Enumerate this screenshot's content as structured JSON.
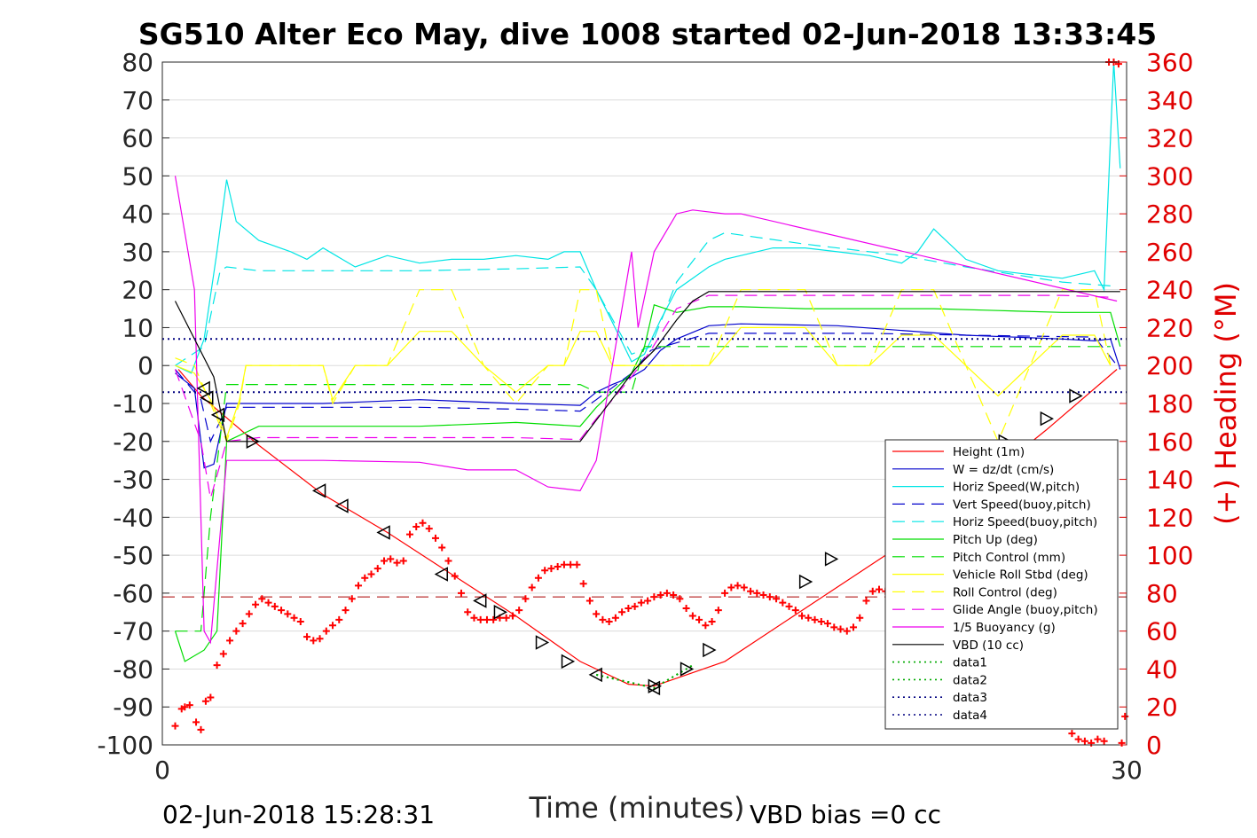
{
  "chart_data": {
    "type": "line",
    "title": "SG510 Alter Eco May, dive 1008 started 02-Jun-2018 13:33:45",
    "xlabel": "Time (minutes)",
    "ylabel_right": "(+) Heading (°M)",
    "footer_left": "02-Jun-2018 15:28:31",
    "footer_right": "VBD bias =0 cc",
    "xlim": [
      0,
      30
    ],
    "ylim_left": [
      -100,
      80
    ],
    "ylim_right": [
      0,
      360
    ],
    "xticks": [
      "0",
      "30"
    ],
    "yticks_left": [
      "80",
      "70",
      "60",
      "50",
      "40",
      "30",
      "20",
      "10",
      "0",
      "-10",
      "-20",
      "-30",
      "-40",
      "-50",
      "-60",
      "-70",
      "-80",
      "-90",
      "-100"
    ],
    "yticks_right": [
      "360",
      "340",
      "320",
      "300",
      "280",
      "260",
      "240",
      "220",
      "200",
      "180",
      "160",
      "140",
      "120",
      "100",
      "80",
      "60",
      "40",
      "20",
      "0"
    ],
    "grid": true,
    "legend_position": "lower-right",
    "colors": {
      "red": "#ff0000",
      "blue": "#0000cc",
      "cyan": "#00e5e5",
      "green": "#00dd00",
      "yellow": "#ffff00",
      "magenta": "#ee00ee",
      "black": "#000000",
      "darkred": "#aa0000"
    },
    "series": [
      {
        "name": "Height (1m)",
        "color": "#ff0000",
        "style": "solid",
        "x": [
          0.5,
          1.2,
          3,
          5,
          7,
          9,
          11,
          13,
          14.5,
          15.3,
          17.5,
          20,
          22.5,
          25,
          27.5,
          29.7
        ],
        "y": [
          -1,
          -8,
          -21,
          -34,
          -44,
          -55,
          -66,
          -78,
          -84,
          -84.5,
          -78,
          -64,
          -50,
          -34,
          -17,
          -1
        ]
      },
      {
        "name": "W = dz/dt (cm/s)",
        "color": "#0000cc",
        "style": "solid",
        "x": [
          0.4,
          1,
          1.3,
          1.6,
          2,
          3,
          5,
          8,
          11,
          13,
          13.5,
          14,
          14.6,
          15,
          15.5,
          16,
          17,
          18,
          21,
          25,
          28,
          29,
          29.5,
          29.8
        ],
        "y": [
          -2,
          -6,
          -27,
          -26,
          -10,
          -10,
          -10,
          -9,
          -10,
          -10.5,
          -7,
          -5,
          -3,
          -1,
          4,
          7,
          10.5,
          11,
          10.5,
          8,
          7,
          6.5,
          7,
          -1
        ]
      },
      {
        "name": "Horiz Speed(W,pitch)",
        "color": "#00e5e5",
        "style": "solid",
        "x": [
          0.4,
          0.9,
          1.3,
          1.7,
          2,
          2.3,
          3,
          4,
          4.5,
          5,
          6,
          7,
          8,
          9,
          10,
          11,
          12,
          12.5,
          13,
          13.5,
          14.2,
          14.6,
          15,
          15.5,
          16,
          17,
          17.5,
          18,
          19,
          20,
          21,
          22,
          23,
          23.5,
          24,
          25,
          26,
          27,
          28,
          29,
          29.3,
          29.6,
          29.8
        ],
        "y": [
          0,
          -2,
          7,
          30,
          49,
          38,
          33,
          30,
          28,
          31,
          26,
          29,
          27,
          28,
          28,
          29,
          28,
          30,
          30,
          20,
          8,
          1,
          3,
          12,
          20,
          26,
          28,
          29,
          31,
          31,
          30,
          29,
          27,
          30,
          36,
          28,
          25,
          24,
          23,
          25,
          20,
          80,
          52
        ]
      },
      {
        "name": "Vert Speed(buoy,pitch)",
        "color": "#0000cc",
        "style": "dashed",
        "x": [
          0.4,
          1.2,
          1.5,
          2,
          3,
          5,
          8,
          11,
          13,
          13.5,
          14.6,
          15.2,
          16,
          17,
          18,
          22,
          25,
          29,
          29.8
        ],
        "y": [
          -1,
          -9,
          -20,
          -11,
          -11,
          -11,
          -11,
          -11.5,
          -12,
          -9,
          -2,
          4,
          6,
          8.5,
          8.5,
          8.5,
          8,
          7.5,
          -1
        ]
      },
      {
        "name": "Horiz Speed(buoy,pitch)",
        "color": "#00e5e5",
        "style": "dashed",
        "x": [
          0.4,
          1.3,
          1.8,
          2,
          3,
          5,
          8,
          11,
          13,
          13.5,
          14.6,
          15.2,
          16,
          17,
          17.5,
          20,
          23,
          25,
          28,
          29.5
        ],
        "y": [
          0,
          5,
          25,
          26,
          25,
          25,
          25,
          25.5,
          26,
          20,
          3,
          5,
          22,
          33,
          35,
          32,
          29,
          26,
          22,
          21
        ]
      },
      {
        "name": "Pitch Up (deg)",
        "color": "#00dd00",
        "style": "solid",
        "x": [
          0.4,
          0.7,
          1.3,
          1.7,
          2,
          3,
          5,
          8,
          11,
          13,
          13.5,
          14.6,
          15,
          15.3,
          16,
          17,
          18,
          20,
          22,
          24,
          26,
          28,
          29,
          29.5,
          29.8
        ],
        "y": [
          -70,
          -78,
          -75,
          -70,
          -20,
          -16,
          -16,
          -16,
          -15,
          -16,
          -11,
          -2,
          5,
          16,
          14,
          15.5,
          15.5,
          15,
          15,
          15,
          14.5,
          14,
          14,
          14,
          5
        ]
      },
      {
        "name": "Pitch Control (mm)",
        "color": "#00dd00",
        "style": "dashed",
        "x": [
          0.4,
          1.2,
          1.5,
          2,
          3,
          13,
          13.5,
          14.6,
          15,
          15.3,
          16,
          29.5
        ],
        "y": [
          -70,
          -70,
          -40,
          -5,
          -5,
          -5,
          -7,
          -7,
          5,
          5,
          5,
          5
        ]
      },
      {
        "name": "Vehicle Roll Stbd (deg)",
        "color": "#ffff00",
        "style": "solid",
        "x": [
          0.4,
          1,
          1.5,
          2,
          2.4,
          2.6,
          3,
          5,
          5.3,
          6,
          6.5,
          7,
          8,
          9,
          10,
          11,
          12,
          12.5,
          13,
          13.5,
          14,
          15,
          16,
          17,
          18,
          20,
          21,
          22,
          23,
          24,
          25,
          26,
          27,
          28,
          29,
          29.5
        ],
        "y": [
          0,
          -2,
          -9,
          -19,
          -9,
          0,
          0,
          0,
          -9,
          0,
          0,
          0,
          9,
          9,
          0,
          -7,
          0,
          0,
          9,
          9,
          0,
          0,
          0,
          0,
          10,
          10,
          0,
          0,
          8,
          8,
          0,
          -8,
          0,
          8,
          8,
          0
        ]
      },
      {
        "name": "Roll Control (deg)",
        "color": "#ffff00",
        "style": "dashed",
        "x": [
          0.4,
          1,
          1.5,
          2,
          2.4,
          2.6,
          3,
          5,
          5.3,
          6,
          6.5,
          7,
          8,
          9,
          10,
          11,
          12,
          12.5,
          13,
          13.5,
          14,
          15,
          16,
          17,
          18,
          20,
          21,
          22,
          23,
          24,
          25,
          26,
          27,
          28,
          29,
          29.5
        ],
        "y": [
          2,
          0,
          -10,
          -20,
          -10,
          0,
          0,
          0,
          -10,
          0,
          0,
          0,
          20,
          20,
          0,
          -10,
          0,
          0,
          20,
          20,
          0,
          0,
          0,
          0,
          20,
          20,
          0,
          0,
          20,
          20,
          0,
          -20,
          0,
          20,
          20,
          0
        ]
      },
      {
        "name": "Glide Angle (buoy,pitch)",
        "color": "#ee00ee",
        "style": "dashed",
        "x": [
          0.4,
          1.2,
          1.5,
          2,
          3,
          5,
          8,
          11,
          13,
          13.5,
          14.6,
          15.2,
          16,
          17,
          20,
          24,
          28,
          29.5
        ],
        "y": [
          -1,
          -20,
          -35,
          -20,
          -19,
          -19,
          -19,
          -19,
          -19.5,
          -14,
          -3,
          4,
          15,
          18.5,
          18.5,
          18.5,
          18.5,
          18
        ]
      },
      {
        "name": "1/5 Buoyancy (g)",
        "color": "#ee00ee",
        "style": "solid",
        "x": [
          0.4,
          1,
          1.3,
          1.5,
          2,
          3,
          5,
          8,
          9.5,
          11,
          12,
          13,
          13.5,
          14.6,
          14.8,
          15.3,
          16,
          16.5,
          17.5,
          18,
          29.7
        ],
        "y": [
          50,
          20,
          -70,
          -73,
          -25,
          -25,
          -25,
          -25.5,
          -27.5,
          -27.5,
          -32,
          -33,
          -25,
          30,
          10,
          30,
          40,
          41,
          40,
          40,
          17
        ]
      },
      {
        "name": "VBD (10 cc)",
        "color": "#000000",
        "style": "solid",
        "x": [
          0.4,
          1.6,
          2,
          3,
          5,
          8,
          11,
          13,
          14.7,
          15.3,
          16,
          16.5,
          17,
          20,
          25,
          29.8
        ],
        "y": [
          17,
          -3,
          -20,
          -20,
          -20,
          -20,
          -20,
          -20,
          -1,
          4,
          12,
          17,
          19.5,
          19.5,
          19.5,
          19.5
        ]
      },
      {
        "name": "data1",
        "color": "#00aa00",
        "style": "dotted",
        "x": [
          13.5,
          15.3,
          16.5
        ],
        "y": [
          -81.5,
          -85,
          -79
        ]
      },
      {
        "name": "data2",
        "color": "#00aa00",
        "style": "dotted",
        "x": [
          13.5,
          15.3,
          16.5
        ],
        "y": [
          -81.5,
          -85,
          -79
        ]
      },
      {
        "name": "data3",
        "color": "#000080",
        "style": "dotted",
        "x": [
          0,
          30
        ],
        "y": [
          7,
          7
        ]
      },
      {
        "name": "data4",
        "color": "#000080",
        "style": "dotted",
        "x": [
          0,
          30
        ],
        "y": [
          -7,
          -7
        ]
      }
    ],
    "heading_reference": {
      "color": "#aa0000",
      "style": "dashed",
      "heading_deg": 78
    },
    "heading_points": {
      "color": "#ff0000",
      "marker": "+",
      "x": [
        0.4,
        0.6,
        0.7,
        0.85,
        1.05,
        1.2,
        1.35,
        1.5,
        1.7,
        1.9,
        2.1,
        2.3,
        2.5,
        2.7,
        2.9,
        3.1,
        3.3,
        3.5,
        3.7,
        3.9,
        4.1,
        4.3,
        4.5,
        4.7,
        4.9,
        5.1,
        5.3,
        5.5,
        5.7,
        5.9,
        6.1,
        6.3,
        6.5,
        6.7,
        6.9,
        7.1,
        7.3,
        7.5,
        7.7,
        7.9,
        8.1,
        8.3,
        8.5,
        8.7,
        8.9,
        9.1,
        9.3,
        9.5,
        9.7,
        9.9,
        10.1,
        10.3,
        10.5,
        10.7,
        10.9,
        11.1,
        11.3,
        11.5,
        11.7,
        11.9,
        12.1,
        12.3,
        12.5,
        12.7,
        12.9,
        13.1,
        13.3,
        13.5,
        13.7,
        13.9,
        14.1,
        14.3,
        14.5,
        14.7,
        14.9,
        15.1,
        15.3,
        15.5,
        15.7,
        15.9,
        16.1,
        16.3,
        16.5,
        16.7,
        16.9,
        17.1,
        17.3,
        17.5,
        17.7,
        17.9,
        18.1,
        18.3,
        18.5,
        18.7,
        18.9,
        19.1,
        19.3,
        19.5,
        19.7,
        19.9,
        20.1,
        20.3,
        20.5,
        20.7,
        20.9,
        21.1,
        21.3,
        21.5,
        21.7,
        21.9,
        22.1,
        22.3,
        22.5,
        22.7,
        22.9,
        28.3,
        28.5,
        28.7,
        28.9,
        29.1,
        29.3,
        29.45,
        29.6,
        29.75,
        29.85,
        29.95
      ],
      "y": [
        10,
        19,
        20,
        21,
        12,
        8,
        23,
        25,
        42,
        48,
        55,
        60,
        64,
        69,
        74,
        77,
        75,
        73,
        71,
        69,
        67,
        65,
        57,
        55,
        56,
        60,
        63,
        66,
        71,
        77,
        84,
        88,
        90,
        93,
        97,
        98,
        96,
        97,
        111,
        115,
        117,
        114,
        109,
        104,
        97,
        89,
        80,
        70,
        67,
        66,
        66,
        66,
        67,
        67,
        68,
        71,
        77,
        83,
        88,
        92,
        93,
        94,
        95,
        95,
        95,
        85,
        76,
        69,
        66,
        65,
        67,
        70,
        72,
        73,
        75,
        76,
        78,
        79,
        80,
        79,
        77,
        72,
        68,
        66,
        63,
        65,
        71,
        80,
        83,
        84,
        83,
        81,
        80,
        79,
        78,
        77,
        75,
        73,
        71,
        68,
        67,
        66,
        65,
        64,
        62,
        61,
        60,
        62,
        67,
        76,
        81,
        82,
        81,
        79,
        76,
        6,
        3,
        2,
        1,
        3,
        2,
        360,
        360,
        359,
        1,
        15
      ]
    },
    "triangle_markers": {
      "color": "#000000",
      "left": [
        [
          1.3,
          -6
        ],
        [
          1.4,
          -8.5
        ],
        [
          1.75,
          -13
        ],
        [
          4.9,
          -33
        ],
        [
          5.6,
          -37
        ],
        [
          6.9,
          -44
        ],
        [
          8.7,
          -55
        ],
        [
          9.9,
          -62
        ],
        [
          13.5,
          -81.5
        ],
        [
          15.3,
          -85
        ]
      ],
      "right": [
        [
          2.8,
          -20
        ],
        [
          10.5,
          -65
        ],
        [
          11.8,
          -73
        ],
        [
          12.6,
          -78
        ],
        [
          15.3,
          -84.5
        ],
        [
          16.3,
          -80
        ],
        [
          17,
          -75
        ],
        [
          20,
          -57
        ],
        [
          20.8,
          -51
        ],
        [
          26.2,
          -20
        ],
        [
          27.5,
          -14
        ],
        [
          28.4,
          -8
        ]
      ]
    }
  }
}
